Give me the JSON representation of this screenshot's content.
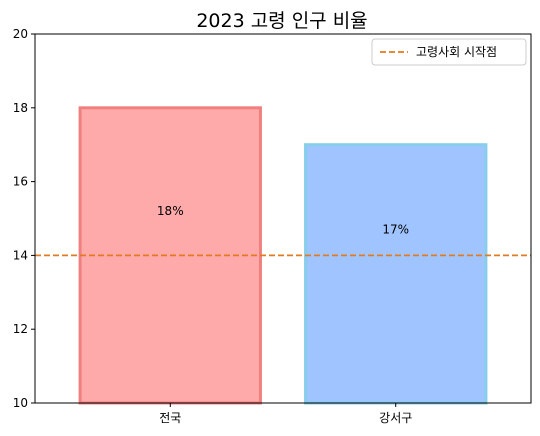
{
  "chart_data": {
    "type": "bar",
    "title": "2023 고령 인구 비율",
    "xlabel": "",
    "ylabel": "",
    "categories": [
      "전국",
      "강서구"
    ],
    "values": [
      18,
      17
    ],
    "bar_labels": [
      "18%",
      "17%"
    ],
    "ylim": [
      10,
      20
    ],
    "yticks": [
      10,
      12,
      14,
      16,
      18,
      20
    ],
    "grid": false,
    "bar_colors": [
      {
        "fill": "#ffaaaa",
        "edge": "#f08080"
      },
      {
        "fill": "#a0c4ff",
        "edge": "#87ceeb"
      }
    ],
    "reference_line": {
      "value": 14,
      "label": "고령사회 시작점",
      "color": "#e07b22",
      "style": "dashed"
    },
    "legend": {
      "placement": "top-right"
    }
  }
}
